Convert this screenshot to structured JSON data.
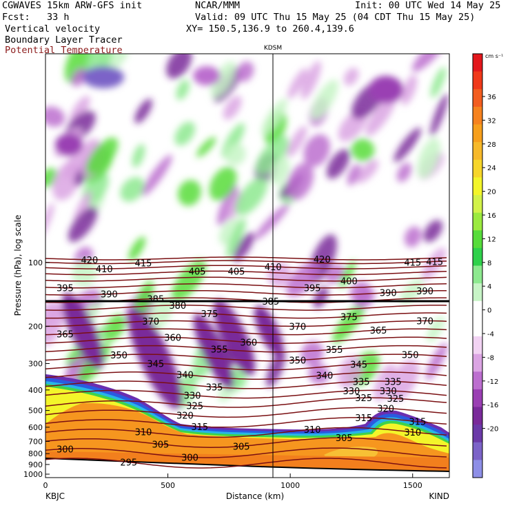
{
  "header": {
    "left": [
      "CGWAVES 15km ARW-GFS init",
      "Fcst:   33 h"
    ],
    "center": "NCAR/MMM",
    "right": "Init: 00 UTC Wed 14 May 25",
    "valid": "Valid: 09 UTC Thu 15 May 25 (04 CDT Thu 15 May 25)",
    "xy": "XY= 150.5,136.9 to 260.4,139.6",
    "fields": [
      {
        "label": "Vertical velocity",
        "color": "#000000"
      },
      {
        "label": "Boundary Layer Tracer",
        "color": "#000000"
      },
      {
        "label": "Potential Temperature",
        "color": "#8b1a1a"
      }
    ]
  },
  "chart_data": {
    "type": "heatmap",
    "title": "",
    "xlabel": "Distance (km)",
    "ylabel": "Pressure (hPa), log scale",
    "xlim": [
      0,
      1650
    ],
    "xticks": [
      0,
      500,
      1000,
      1500
    ],
    "yticks": [
      100,
      200,
      300,
      400,
      500,
      600,
      700,
      800,
      900,
      1000
    ],
    "ylog": true,
    "endpoints": {
      "left": "KBJC",
      "right": "KIND"
    },
    "station_marker": {
      "label": "KDSM",
      "x": 940
    },
    "colorbar": {
      "unit": "cm s⁻¹",
      "ticks": [
        36,
        32,
        28,
        24,
        20,
        16,
        12,
        8,
        4,
        0,
        -4,
        -8,
        -12,
        -16,
        -20
      ],
      "colors": [
        "#e3171c",
        "#f0391a",
        "#f35d1f",
        "#f6821e",
        "#f79f1c",
        "#f7b92a",
        "#f7d62a",
        "#f3f52a",
        "#d2f249",
        "#9bea3f",
        "#57dc3b",
        "#2fd14b",
        "#8de98f",
        "#c7f4c6",
        "#ffffff",
        "#ffffff",
        "#f2d3f3",
        "#dba4e3",
        "#bc6ecf",
        "#9a3fb3",
        "#7a2a9a",
        "#6b3aa8",
        "#7c63c8",
        "#8e8fe7"
      ]
    },
    "theta_contours": [
      {
        "value": 420,
        "labels_x": [
          180,
          1130
        ]
      },
      {
        "value": 415,
        "labels_x": [
          400,
          1500,
          1590
        ]
      },
      {
        "value": 410,
        "labels_x": [
          240,
          930
        ]
      },
      {
        "value": 405,
        "labels_x": [
          620,
          780
        ]
      },
      {
        "value": 400,
        "labels_x": [
          1240
        ]
      },
      {
        "value": 395,
        "labels_x": [
          80,
          1090
        ]
      },
      {
        "value": 390,
        "labels_x": [
          260,
          1400,
          1550
        ]
      },
      {
        "value": 385,
        "labels_x": [
          450,
          920
        ]
      },
      {
        "value": 380,
        "labels_x": [
          540
        ]
      },
      {
        "value": 375,
        "labels_x": [
          670,
          1240
        ]
      },
      {
        "value": 370,
        "labels_x": [
          430,
          1030,
          1550
        ]
      },
      {
        "value": 365,
        "labels_x": [
          80,
          1360
        ]
      },
      {
        "value": 360,
        "labels_x": [
          520,
          830
        ]
      },
      {
        "value": 355,
        "labels_x": [
          710,
          1180
        ]
      },
      {
        "value": 350,
        "labels_x": [
          300,
          1030,
          1490
        ]
      },
      {
        "value": 345,
        "labels_x": [
          450,
          1280
        ]
      },
      {
        "value": 340,
        "labels_x": [
          570,
          1140
        ]
      },
      {
        "value": 335,
        "labels_x": [
          690,
          1290,
          1420
        ]
      },
      {
        "value": 330,
        "labels_x": [
          600,
          1250,
          1400
        ]
      },
      {
        "value": 325,
        "labels_x": [
          610,
          1300,
          1430
        ]
      },
      {
        "value": 320,
        "labels_x": [
          570,
          1390
        ]
      },
      {
        "value": 315,
        "labels_x": [
          630,
          1300,
          1520
        ]
      },
      {
        "value": 310,
        "labels_x": [
          400,
          1090,
          1500
        ]
      },
      {
        "value": 305,
        "labels_x": [
          470,
          800,
          1220
        ]
      },
      {
        "value": 300,
        "labels_x": [
          80,
          590
        ]
      },
      {
        "value": 295,
        "labels_x": [
          340
        ]
      }
    ]
  }
}
